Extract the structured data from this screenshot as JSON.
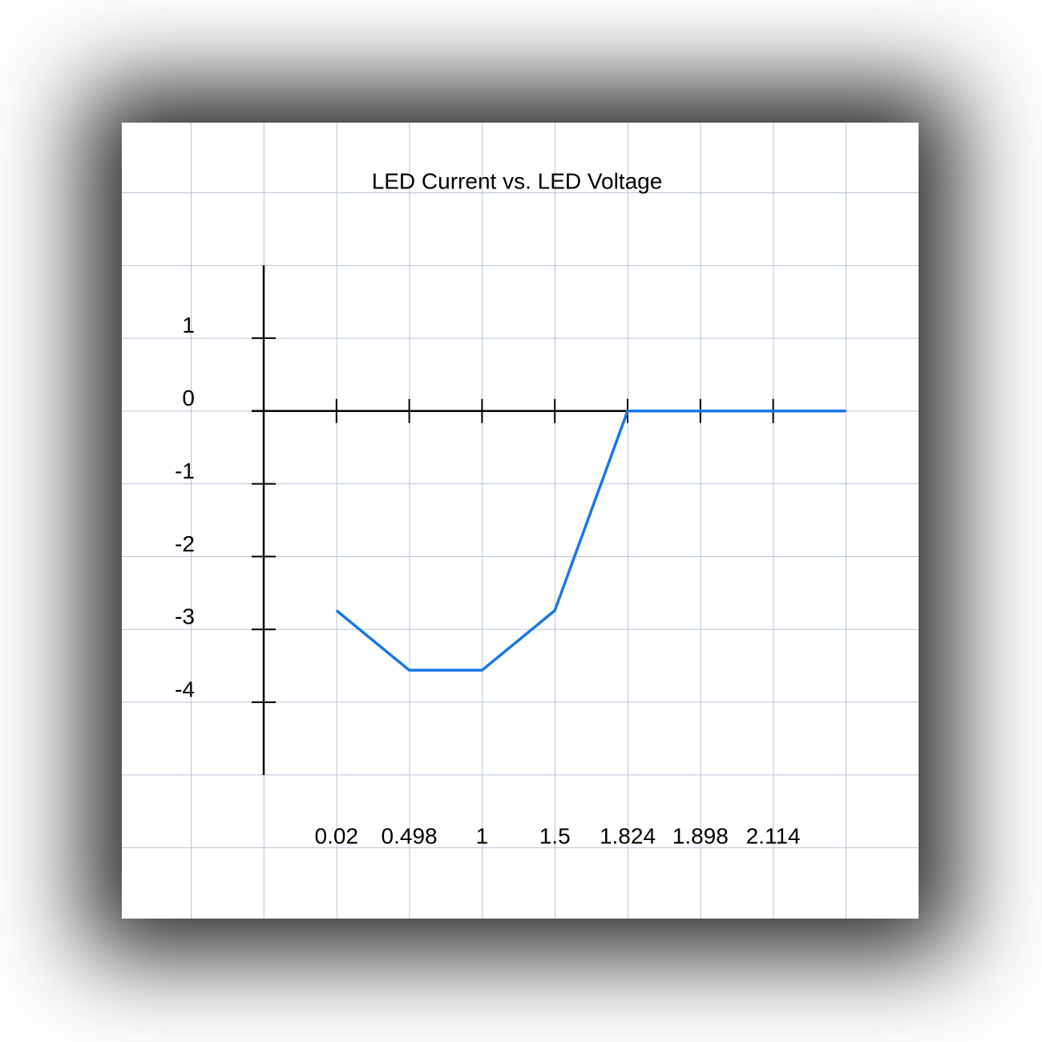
{
  "chart_data": {
    "type": "line",
    "title": "LED Current vs. LED Voltage",
    "categories": [
      "0.02",
      "0.498",
      "1",
      "1.5",
      "1.824",
      "1.898",
      "2.114",
      null
    ],
    "series": [
      {
        "color": "#1877e8",
        "values": [
          -2.74,
          -3.56,
          -3.56,
          -2.74,
          0,
          0,
          0,
          0
        ]
      }
    ],
    "ylim": [
      -5,
      2
    ],
    "yticks": [
      -4,
      -3,
      -2,
      -1,
      0,
      1
    ]
  }
}
